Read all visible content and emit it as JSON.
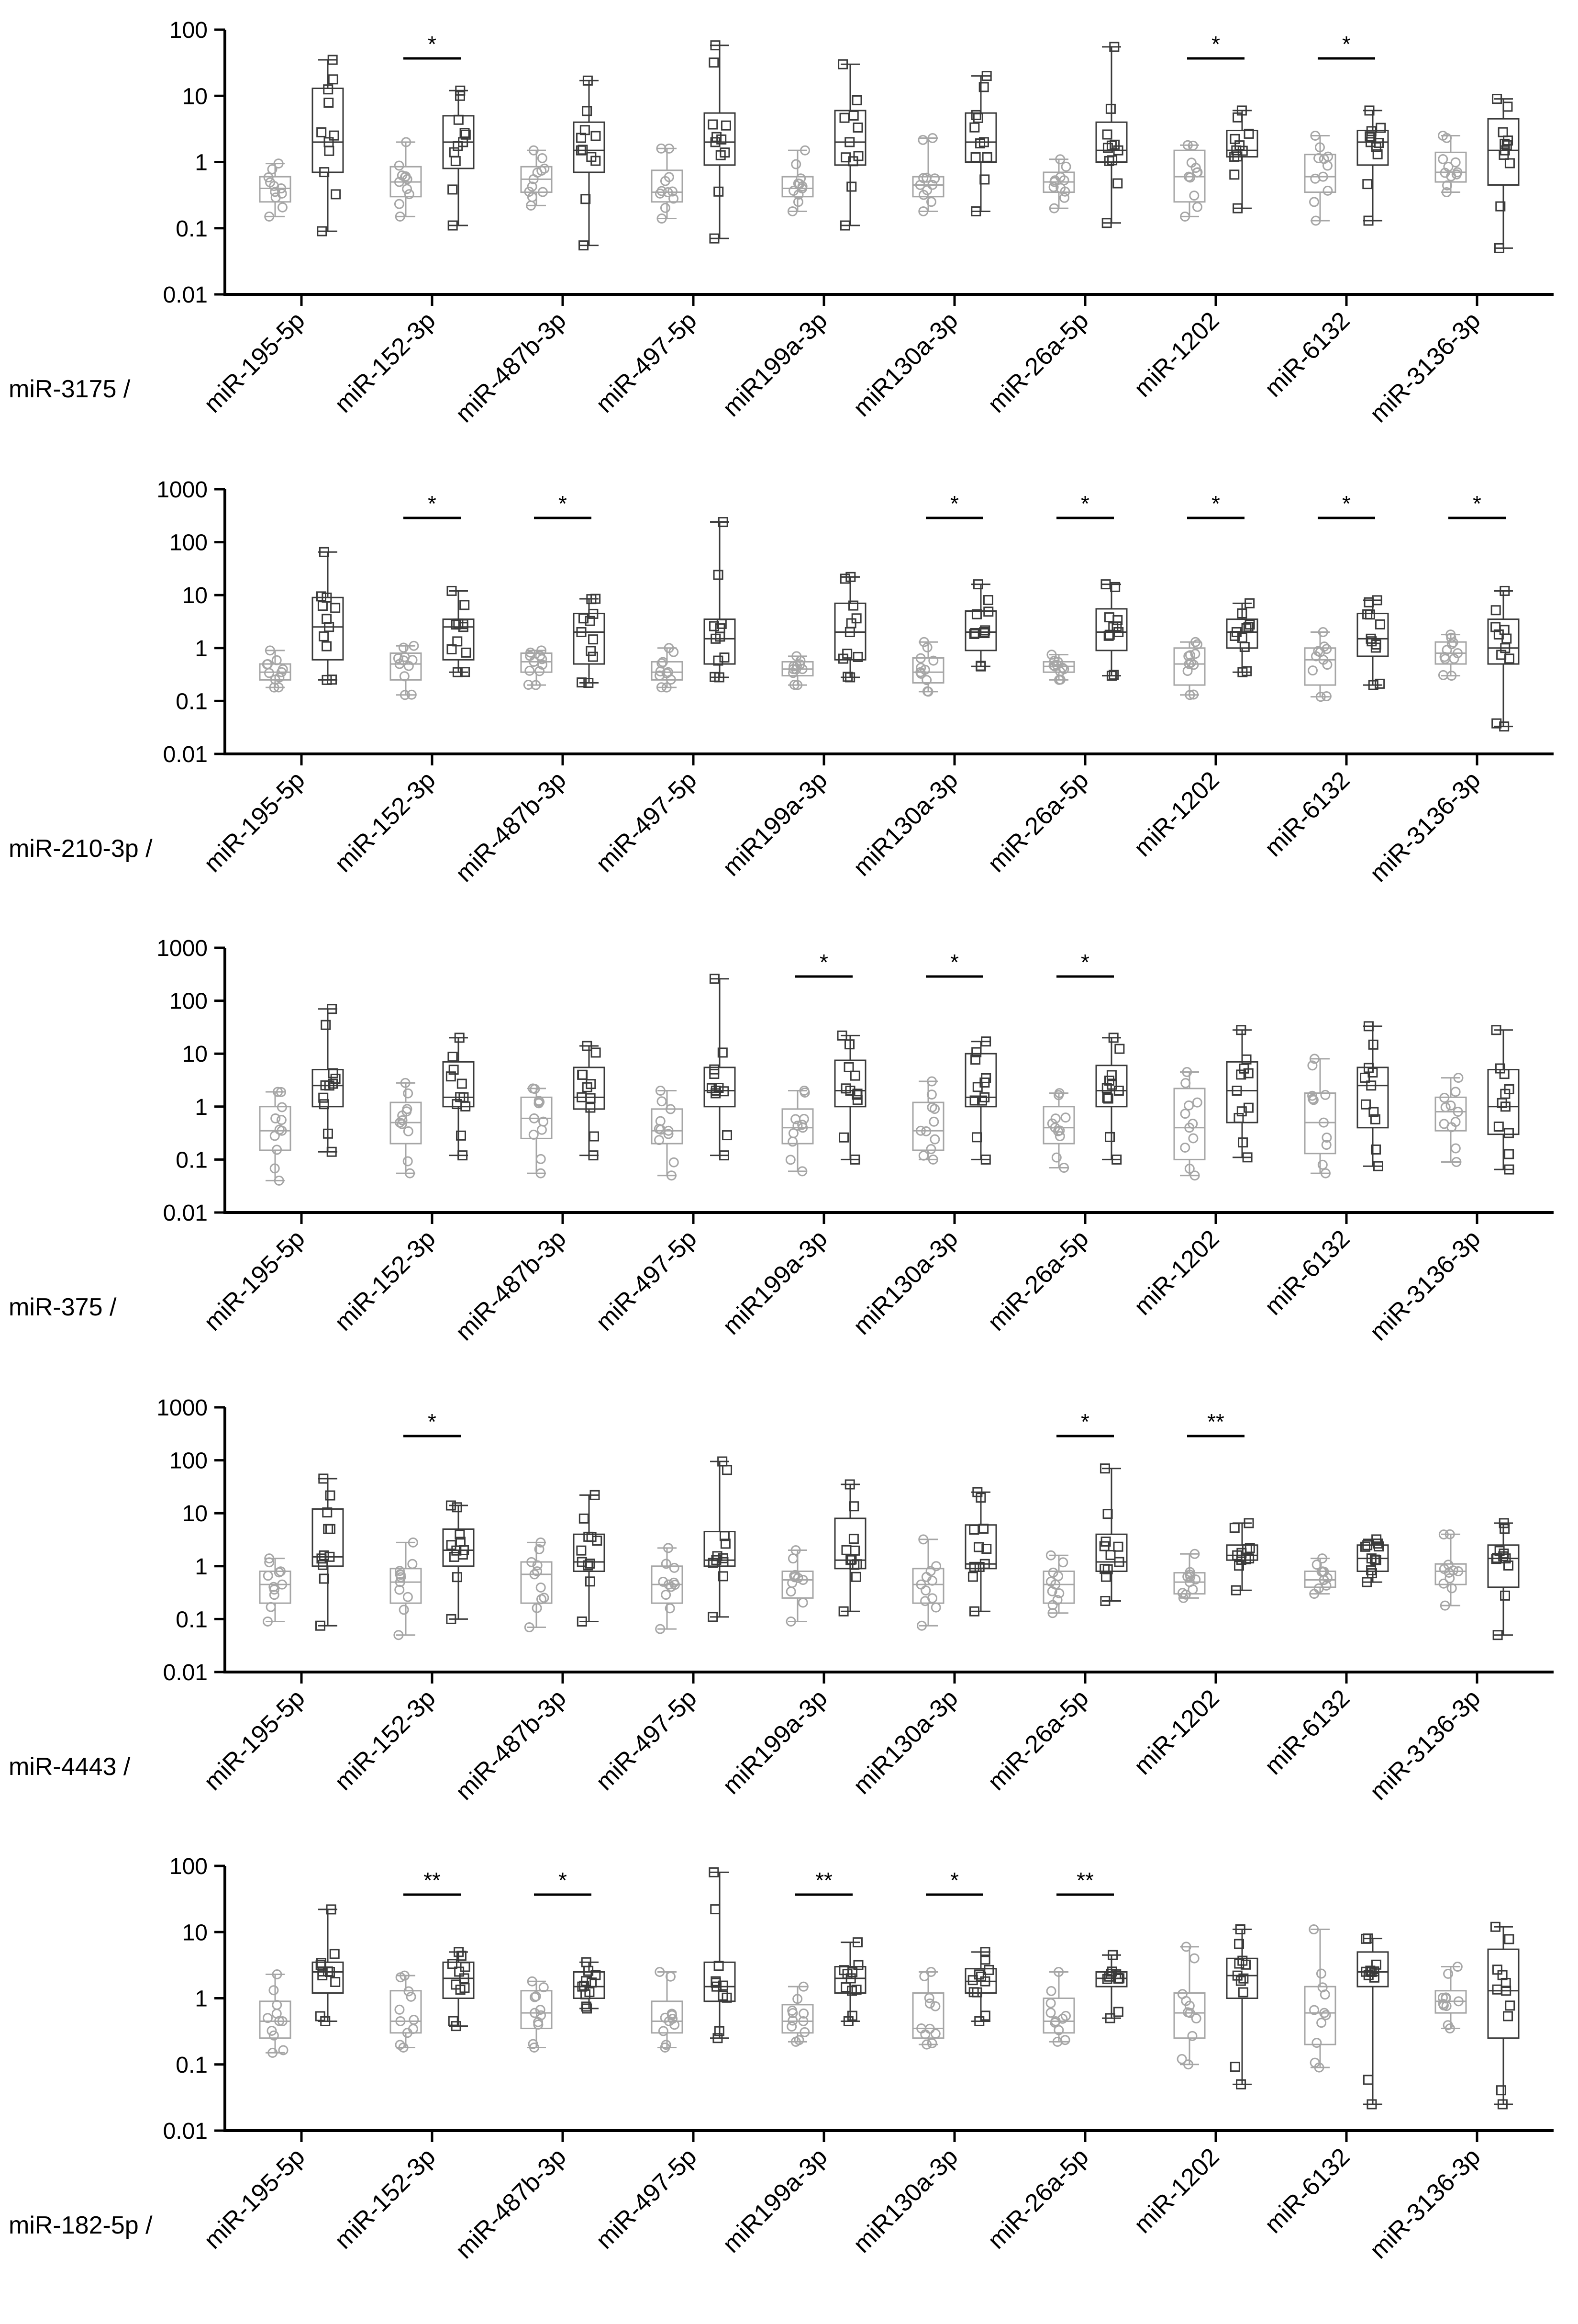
{
  "chart_data": [
    {
      "type": "box",
      "panel_label": "miR-3175 /",
      "yscale": "log",
      "ylim": [
        0.01,
        100
      ],
      "yticks": [
        "100",
        "10",
        "1",
        "0.1",
        "0.01"
      ],
      "categories": [
        "miR-195-5p",
        "miR-152-3p",
        "miR-487b-3p",
        "miR-497-5p",
        "miR199a-3p",
        "miR130a-3p",
        "miR-26a-5p",
        "miR-1202",
        "miR-6132",
        "miR-3136-3p"
      ],
      "colors": {
        "group1": "#a6a6a6",
        "group2": "#3a3a3a"
      },
      "significance": [
        "",
        "*",
        "",
        "",
        "",
        "",
        "",
        "*",
        "*",
        ""
      ],
      "groups": [
        {
          "g1": [
            0.15,
            0.25,
            0.4,
            0.6,
            0.95
          ],
          "g2": [
            0.09,
            0.7,
            2.0,
            13,
            35
          ]
        },
        {
          "g1": [
            0.15,
            0.3,
            0.5,
            0.85,
            2.0
          ],
          "g2": [
            0.11,
            0.8,
            2.0,
            5.0,
            12
          ]
        },
        {
          "g1": [
            0.22,
            0.35,
            0.55,
            0.85,
            1.5
          ],
          "g2": [
            0.055,
            0.7,
            1.5,
            4.0,
            17
          ]
        },
        {
          "g1": [
            0.14,
            0.25,
            0.35,
            0.75,
            1.6
          ],
          "g2": [
            0.07,
            0.9,
            2.0,
            5.5,
            58
          ]
        },
        {
          "g1": [
            0.18,
            0.3,
            0.4,
            0.6,
            1.5
          ],
          "g2": [
            0.11,
            0.9,
            2.0,
            6.0,
            30
          ]
        },
        {
          "g1": [
            0.18,
            0.3,
            0.45,
            0.6,
            2.3
          ],
          "g2": [
            0.18,
            1.0,
            2.0,
            5.5,
            20
          ]
        },
        {
          "g1": [
            0.2,
            0.35,
            0.5,
            0.7,
            1.1
          ],
          "g2": [
            0.12,
            1.0,
            1.5,
            4.0,
            55
          ]
        },
        {
          "g1": [
            0.15,
            0.25,
            0.6,
            1.5,
            1.8
          ],
          "g2": [
            0.2,
            1.2,
            1.5,
            3.0,
            6.0
          ]
        },
        {
          "g1": [
            0.13,
            0.35,
            0.6,
            1.3,
            2.5
          ],
          "g2": [
            0.13,
            0.9,
            2.0,
            3.0,
            6.0
          ]
        },
        {
          "g1": [
            0.35,
            0.5,
            0.7,
            1.4,
            2.5
          ],
          "g2": [
            0.05,
            0.45,
            1.5,
            4.5,
            9.0
          ]
        }
      ]
    },
    {
      "type": "box",
      "panel_label": "miR-210-3p /",
      "yscale": "log",
      "ylim": [
        0.01,
        1000
      ],
      "yticks": [
        "1000",
        "100",
        "10",
        "1",
        "0.1",
        "0.01"
      ],
      "categories": [
        "miR-195-5p",
        "miR-152-3p",
        "miR-487b-3p",
        "miR-497-5p",
        "miR199a-3p",
        "miR130a-3p",
        "miR-26a-5p",
        "miR-1202",
        "miR-6132",
        "miR-3136-3p"
      ],
      "colors": {
        "group1": "#a6a6a6",
        "group2": "#3a3a3a"
      },
      "significance": [
        "",
        "*",
        "*",
        "",
        "",
        "*",
        "*",
        "*",
        "*",
        "*"
      ],
      "groups": [
        {
          "g1": [
            0.18,
            0.25,
            0.35,
            0.5,
            0.9
          ],
          "g2": [
            0.25,
            0.6,
            2.5,
            9.0,
            65
          ]
        },
        {
          "g1": [
            0.13,
            0.25,
            0.5,
            0.8,
            1.1
          ],
          "g2": [
            0.35,
            0.6,
            2.5,
            3.5,
            12
          ]
        },
        {
          "g1": [
            0.2,
            0.35,
            0.55,
            0.8,
            0.9
          ],
          "g2": [
            0.22,
            0.5,
            2.0,
            4.5,
            8.5
          ]
        },
        {
          "g1": [
            0.18,
            0.25,
            0.35,
            0.55,
            1.0
          ],
          "g2": [
            0.28,
            0.5,
            1.5,
            3.5,
            240
          ]
        },
        {
          "g1": [
            0.2,
            0.3,
            0.4,
            0.55,
            0.7
          ],
          "g2": [
            0.28,
            0.6,
            2.0,
            7.0,
            22
          ]
        },
        {
          "g1": [
            0.15,
            0.22,
            0.35,
            0.65,
            1.3
          ],
          "g2": [
            0.45,
            0.9,
            2.0,
            5.0,
            16
          ]
        },
        {
          "g1": [
            0.25,
            0.35,
            0.45,
            0.55,
            0.75
          ],
          "g2": [
            0.3,
            0.9,
            2.0,
            5.5,
            16
          ]
        },
        {
          "g1": [
            0.13,
            0.2,
            0.5,
            1.0,
            1.3
          ],
          "g2": [
            0.35,
            1.0,
            2.0,
            3.5,
            7.0
          ]
        },
        {
          "g1": [
            0.12,
            0.2,
            0.6,
            1.0,
            2.0
          ],
          "g2": [
            0.2,
            0.7,
            1.5,
            4.5,
            8.0
          ]
        },
        {
          "g1": [
            0.3,
            0.5,
            0.8,
            1.3,
            1.8
          ],
          "g2": [
            0.033,
            0.5,
            1.0,
            3.5,
            12
          ]
        }
      ]
    },
    {
      "type": "box",
      "panel_label": "miR-375 /",
      "yscale": "log",
      "ylim": [
        0.01,
        1000
      ],
      "yticks": [
        "1000",
        "100",
        "10",
        "1",
        "0.1",
        "0.01"
      ],
      "categories": [
        "miR-195-5p",
        "miR-152-3p",
        "miR-487b-3p",
        "miR-497-5p",
        "miR199a-3p",
        "miR130a-3p",
        "miR-26a-5p",
        "miR-1202",
        "miR-6132",
        "miR-3136-3p"
      ],
      "colors": {
        "group1": "#a6a6a6",
        "group2": "#3a3a3a"
      },
      "significance": [
        "",
        "",
        "",
        "",
        "*",
        "*",
        "*",
        "",
        "",
        ""
      ],
      "groups": [
        {
          "g1": [
            0.04,
            0.15,
            0.35,
            1.0,
            1.9
          ],
          "g2": [
            0.14,
            1.0,
            2.5,
            5.0,
            70
          ]
        },
        {
          "g1": [
            0.055,
            0.2,
            0.5,
            1.2,
            2.8
          ],
          "g2": [
            0.12,
            1.0,
            1.5,
            7.0,
            20
          ]
        },
        {
          "g1": [
            0.055,
            0.25,
            0.6,
            1.5,
            2.2
          ],
          "g2": [
            0.12,
            0.9,
            1.5,
            5.5,
            14
          ]
        },
        {
          "g1": [
            0.05,
            0.2,
            0.35,
            0.9,
            2.0
          ],
          "g2": [
            0.12,
            1.0,
            2.0,
            5.5,
            260
          ]
        },
        {
          "g1": [
            0.06,
            0.2,
            0.4,
            0.9,
            2.0
          ],
          "g2": [
            0.1,
            1.0,
            2.0,
            7.5,
            22
          ]
        },
        {
          "g1": [
            0.1,
            0.15,
            0.35,
            1.2,
            3.0
          ],
          "g2": [
            0.1,
            1.0,
            1.5,
            10,
            17
          ]
        },
        {
          "g1": [
            0.07,
            0.2,
            0.4,
            1.0,
            1.8
          ],
          "g2": [
            0.1,
            1.0,
            2.0,
            6.0,
            20
          ]
        },
        {
          "g1": [
            0.05,
            0.1,
            0.4,
            2.2,
            4.5
          ],
          "g2": [
            0.11,
            0.5,
            2.0,
            7.0,
            28
          ]
        },
        {
          "g1": [
            0.055,
            0.13,
            0.5,
            1.8,
            8.0
          ],
          "g2": [
            0.075,
            0.4,
            2.5,
            5.5,
            33
          ]
        },
        {
          "g1": [
            0.09,
            0.35,
            0.8,
            1.5,
            3.5
          ],
          "g2": [
            0.065,
            0.3,
            1.0,
            5.0,
            28
          ]
        }
      ]
    },
    {
      "type": "box",
      "panel_label": "miR-4443 /",
      "yscale": "log",
      "ylim": [
        0.01,
        1000
      ],
      "yticks": [
        "1000",
        "100",
        "10",
        "1",
        "0.1",
        "0.01"
      ],
      "categories": [
        "miR-195-5p",
        "miR-152-3p",
        "miR-487b-3p",
        "miR-497-5p",
        "miR199a-3p",
        "miR130a-3p",
        "miR-26a-5p",
        "miR-1202",
        "miR-6132",
        "miR-3136-3p"
      ],
      "colors": {
        "group1": "#a6a6a6",
        "group2": "#3a3a3a"
      },
      "significance": [
        "",
        "*",
        "",
        "",
        "",
        "",
        "*",
        "**",
        "",
        ""
      ],
      "groups": [
        {
          "g1": [
            0.09,
            0.2,
            0.45,
            0.8,
            1.4
          ],
          "g2": [
            0.075,
            1.0,
            1.5,
            12,
            45
          ]
        },
        {
          "g1": [
            0.05,
            0.2,
            0.5,
            0.9,
            2.8
          ],
          "g2": [
            0.1,
            1.0,
            2.0,
            5.0,
            14
          ]
        },
        {
          "g1": [
            0.07,
            0.2,
            0.7,
            1.2,
            2.8
          ],
          "g2": [
            0.09,
            0.8,
            1.2,
            4.0,
            22
          ]
        },
        {
          "g1": [
            0.065,
            0.2,
            0.45,
            1.0,
            2.2
          ],
          "g2": [
            0.11,
            1.0,
            1.3,
            4.5,
            95
          ]
        },
        {
          "g1": [
            0.09,
            0.25,
            0.55,
            0.8,
            2.0
          ],
          "g2": [
            0.14,
            0.9,
            1.3,
            8.0,
            35
          ]
        },
        {
          "g1": [
            0.075,
            0.2,
            0.45,
            0.9,
            3.2
          ],
          "g2": [
            0.14,
            0.9,
            1.1,
            6.0,
            25
          ]
        },
        {
          "g1": [
            0.13,
            0.2,
            0.45,
            0.8,
            1.6
          ],
          "g2": [
            0.22,
            0.8,
            1.2,
            4.0,
            70
          ]
        },
        {
          "g1": [
            0.25,
            0.3,
            0.5,
            0.75,
            1.7
          ],
          "g2": [
            0.35,
            1.3,
            1.6,
            2.5,
            6.5
          ]
        },
        {
          "g1": [
            0.3,
            0.4,
            0.55,
            0.8,
            1.4
          ],
          "g2": [
            0.5,
            0.8,
            1.4,
            2.5,
            3.2
          ]
        },
        {
          "g1": [
            0.18,
            0.45,
            0.8,
            1.1,
            4.0
          ],
          "g2": [
            0.05,
            0.4,
            1.4,
            2.5,
            6.5
          ]
        }
      ]
    },
    {
      "type": "box",
      "panel_label": "miR-182-5p /",
      "yscale": "log",
      "ylim": [
        0.01,
        100
      ],
      "yticks": [
        "100",
        "10",
        "1",
        "0.1",
        "0.01"
      ],
      "categories": [
        "miR-195-5p",
        "miR-152-3p",
        "miR-487b-3p",
        "miR-497-5p",
        "miR199a-3p",
        "miR130a-3p",
        "miR-26a-5p",
        "miR-1202",
        "miR-6132",
        "miR-3136-3p"
      ],
      "colors": {
        "group1": "#a6a6a6",
        "group2": "#3a3a3a"
      },
      "significance": [
        "",
        "**",
        "*",
        "",
        "**",
        "*",
        "**",
        "",
        "",
        ""
      ],
      "groups": [
        {
          "g1": [
            0.15,
            0.25,
            0.45,
            0.9,
            2.3
          ],
          "g2": [
            0.45,
            1.2,
            2.5,
            3.5,
            22
          ]
        },
        {
          "g1": [
            0.18,
            0.3,
            0.45,
            1.3,
            2.2
          ],
          "g2": [
            0.38,
            1.0,
            2.0,
            3.5,
            5.0
          ]
        },
        {
          "g1": [
            0.18,
            0.35,
            0.6,
            1.3,
            1.8
          ],
          "g2": [
            0.7,
            1.0,
            1.5,
            2.5,
            3.5
          ]
        },
        {
          "g1": [
            0.18,
            0.3,
            0.45,
            0.9,
            2.5
          ],
          "g2": [
            0.25,
            0.9,
            1.5,
            3.5,
            80
          ]
        },
        {
          "g1": [
            0.22,
            0.3,
            0.45,
            0.8,
            1.5
          ],
          "g2": [
            0.45,
            1.2,
            2.0,
            3.0,
            7.0
          ]
        },
        {
          "g1": [
            0.2,
            0.25,
            0.35,
            1.2,
            2.5
          ],
          "g2": [
            0.45,
            1.2,
            1.8,
            2.8,
            5.0
          ]
        },
        {
          "g1": [
            0.22,
            0.3,
            0.45,
            1.0,
            2.5
          ],
          "g2": [
            0.5,
            1.5,
            2.0,
            2.5,
            4.5
          ]
        },
        {
          "g1": [
            0.1,
            0.25,
            0.6,
            1.2,
            6.0
          ],
          "g2": [
            0.05,
            1.0,
            2.2,
            4.0,
            11
          ]
        },
        {
          "g1": [
            0.09,
            0.2,
            0.6,
            1.5,
            11
          ],
          "g2": [
            0.025,
            1.5,
            2.5,
            5.0,
            8.0
          ]
        },
        {
          "g1": [
            0.35,
            0.6,
            0.9,
            1.3,
            3.0
          ],
          "g2": [
            0.025,
            0.25,
            1.3,
            5.5,
            12
          ]
        }
      ]
    }
  ]
}
